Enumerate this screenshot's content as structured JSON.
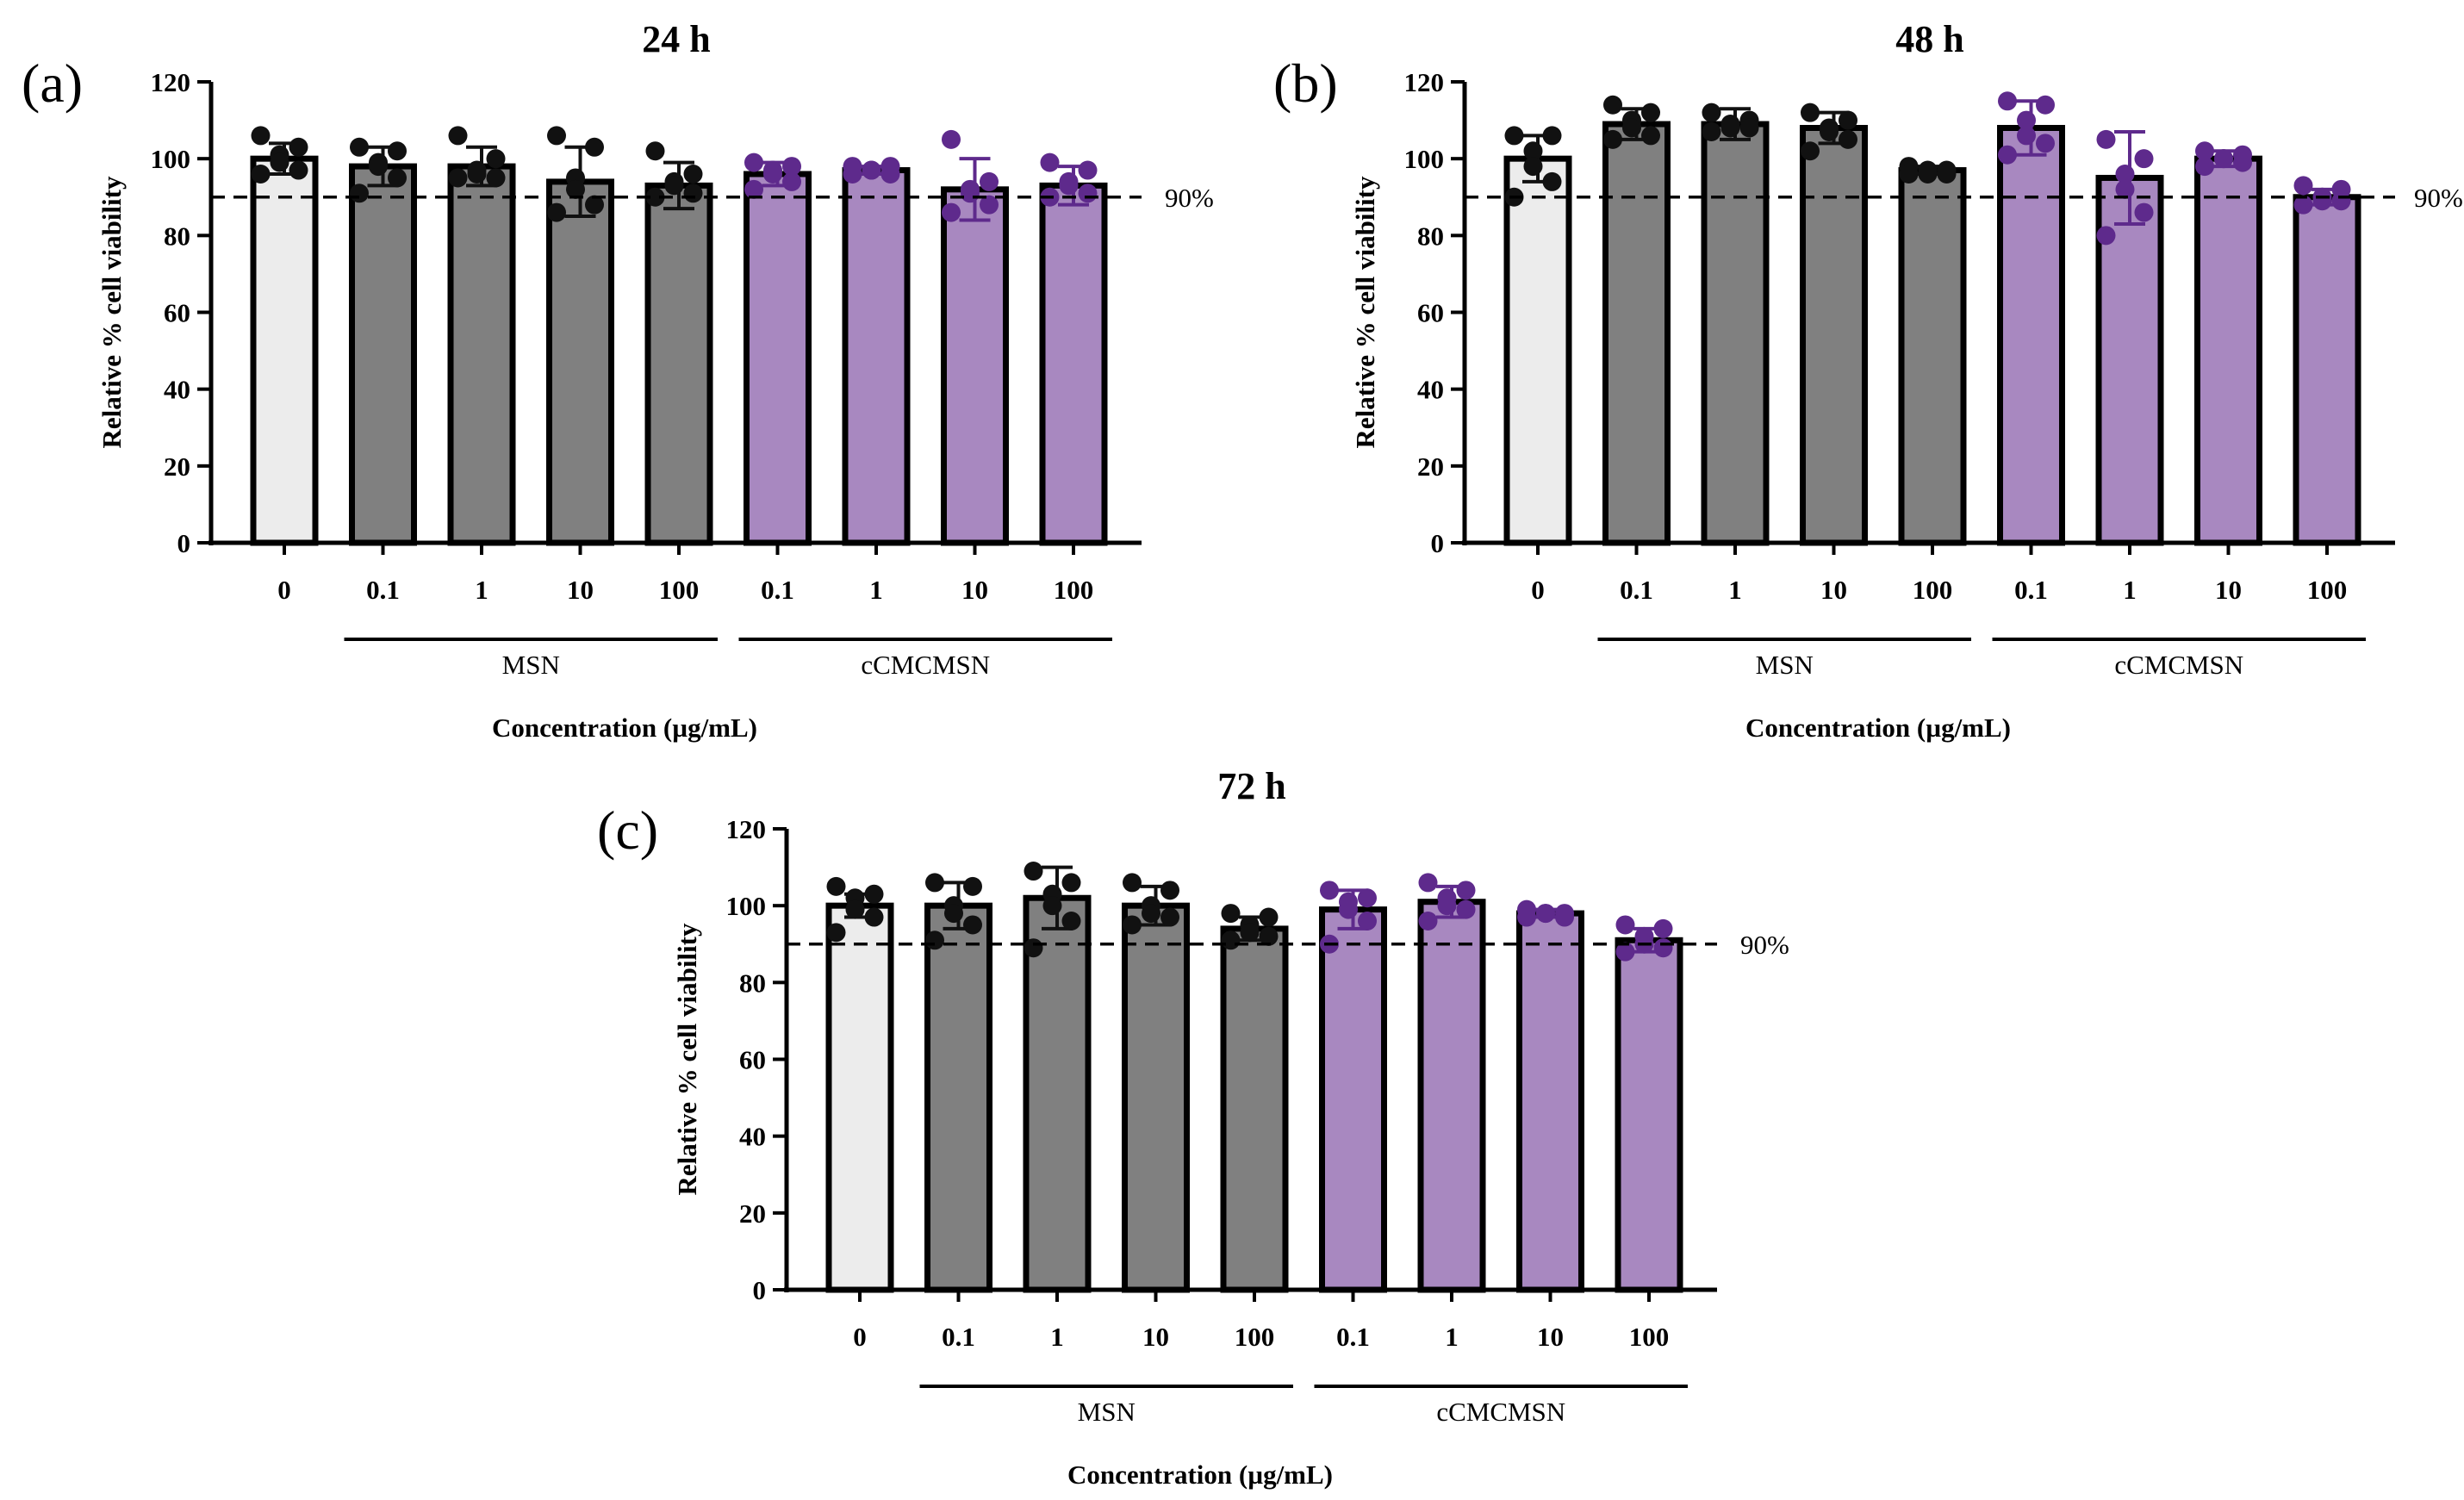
{
  "figure": {
    "reference_line_label": "90%",
    "reference_value": 90
  },
  "chart_data": [
    {
      "type": "bar",
      "panel_label": "(a)",
      "title": "24 h",
      "ylabel": "Relative % cell viability",
      "xlabel": "Concentration (µg/mL)",
      "ylim": [
        0,
        120
      ],
      "yticks": [
        "0",
        "20",
        "40",
        "60",
        "80",
        "100",
        "120"
      ],
      "categories": [
        "0",
        "0.1",
        "1",
        "10",
        "100",
        "0.1",
        "1",
        "10",
        "100"
      ],
      "groups": [
        {
          "name": "MSN",
          "from": 1,
          "to": 4
        },
        {
          "name": "cCMCMSN",
          "from": 5,
          "to": 8
        }
      ],
      "bar_colors": [
        "#ececec",
        "#808080",
        "#808080",
        "#808080",
        "#808080",
        "#a888c0",
        "#a888c0",
        "#a888c0",
        "#a888c0"
      ],
      "point_colors": [
        "#111111",
        "#111111",
        "#111111",
        "#111111",
        "#111111",
        "#5e2a8c",
        "#5e2a8c",
        "#5e2a8c",
        "#5e2a8c"
      ],
      "values": [
        100,
        98,
        98,
        94,
        93,
        96,
        97,
        92,
        93
      ],
      "errors": [
        4,
        5,
        5,
        9,
        6,
        3,
        1,
        8,
        5
      ],
      "points": [
        [
          106,
          103,
          101,
          99,
          97,
          96
        ],
        [
          103,
          102,
          99,
          98,
          95,
          91
        ],
        [
          106,
          100,
          97,
          96,
          95,
          95
        ],
        [
          106,
          103,
          95,
          92,
          88,
          86
        ],
        [
          102,
          96,
          94,
          93,
          91,
          90
        ],
        [
          99,
          98,
          97,
          96,
          94,
          92
        ],
        [
          98,
          98,
          97,
          97,
          96,
          96
        ],
        [
          105,
          94,
          92,
          91,
          88,
          86
        ],
        [
          99,
          97,
          94,
          93,
          91,
          90
        ]
      ]
    },
    {
      "type": "bar",
      "panel_label": "(b)",
      "title": "48 h",
      "ylabel": "Relative % cell viability",
      "xlabel": "Concentration (µg/mL)",
      "ylim": [
        0,
        120
      ],
      "yticks": [
        "0",
        "20",
        "40",
        "60",
        "80",
        "100",
        "120"
      ],
      "categories": [
        "0",
        "0.1",
        "1",
        "10",
        "100",
        "0.1",
        "1",
        "10",
        "100"
      ],
      "groups": [
        {
          "name": "MSN",
          "from": 1,
          "to": 4
        },
        {
          "name": "cCMCMSN",
          "from": 5,
          "to": 8
        }
      ],
      "bar_colors": [
        "#ececec",
        "#808080",
        "#808080",
        "#808080",
        "#808080",
        "#a888c0",
        "#a888c0",
        "#a888c0",
        "#a888c0"
      ],
      "point_colors": [
        "#111111",
        "#111111",
        "#111111",
        "#111111",
        "#111111",
        "#5e2a8c",
        "#5e2a8c",
        "#5e2a8c",
        "#5e2a8c"
      ],
      "values": [
        100,
        109,
        109,
        108,
        97,
        108,
        95,
        100,
        90
      ],
      "errors": [
        6,
        4,
        4,
        4,
        1,
        7,
        12,
        2,
        2
      ],
      "points": [
        [
          106,
          106,
          102,
          98,
          94,
          90
        ],
        [
          114,
          112,
          110,
          108,
          106,
          105
        ],
        [
          112,
          110,
          109,
          108,
          108,
          107
        ],
        [
          112,
          110,
          108,
          107,
          105,
          102
        ],
        [
          98,
          97,
          97,
          96,
          96,
          96
        ],
        [
          115,
          114,
          110,
          106,
          104,
          101
        ],
        [
          105,
          100,
          96,
          92,
          86,
          80
        ],
        [
          102,
          101,
          100,
          100,
          99,
          98
        ],
        [
          93,
          92,
          90,
          89,
          89,
          88
        ]
      ]
    },
    {
      "type": "bar",
      "panel_label": "(c)",
      "title": "72 h",
      "ylabel": "Relative % cell viability",
      "xlabel": "Concentration (µg/mL)",
      "ylim": [
        0,
        120
      ],
      "yticks": [
        "0",
        "20",
        "40",
        "60",
        "80",
        "100",
        "120"
      ],
      "categories": [
        "0",
        "0.1",
        "1",
        "10",
        "100",
        "0.1",
        "1",
        "10",
        "100"
      ],
      "groups": [
        {
          "name": "MSN",
          "from": 1,
          "to": 4
        },
        {
          "name": "cCMCMSN",
          "from": 5,
          "to": 8
        }
      ],
      "bar_colors": [
        "#ececec",
        "#808080",
        "#808080",
        "#808080",
        "#808080",
        "#a888c0",
        "#a888c0",
        "#a888c0",
        "#a888c0"
      ],
      "point_colors": [
        "#111111",
        "#111111",
        "#111111",
        "#111111",
        "#111111",
        "#5e2a8c",
        "#5e2a8c",
        "#5e2a8c",
        "#5e2a8c"
      ],
      "values": [
        100,
        100,
        102,
        100,
        94,
        99,
        101,
        98,
        91
      ],
      "errors": [
        3,
        6,
        8,
        5,
        3,
        5,
        4,
        1,
        3
      ],
      "points": [
        [
          105,
          103,
          102,
          99,
          97,
          93
        ],
        [
          106,
          105,
          100,
          98,
          95,
          91
        ],
        [
          109,
          106,
          103,
          100,
          96,
          89
        ],
        [
          106,
          104,
          100,
          98,
          97,
          95
        ],
        [
          98,
          97,
          95,
          93,
          92,
          91
        ],
        [
          104,
          102,
          101,
          99,
          96,
          90
        ],
        [
          106,
          104,
          102,
          100,
          99,
          96
        ],
        [
          99,
          98,
          98,
          98,
          97,
          97
        ],
        [
          95,
          94,
          92,
          90,
          89,
          88
        ]
      ]
    }
  ]
}
